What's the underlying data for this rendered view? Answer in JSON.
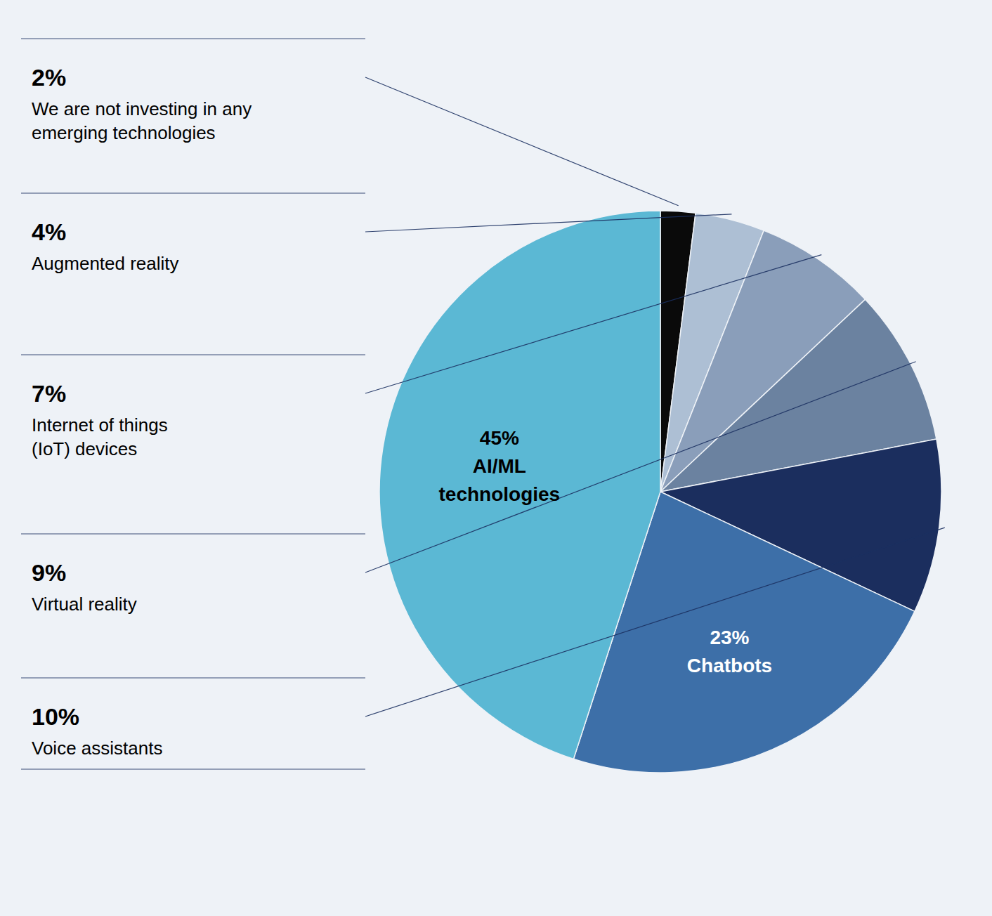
{
  "chart_data": {
    "type": "pie",
    "categories": [
      "We are not investing in any\nemerging technologies",
      "Augmented reality",
      "Internet of things\n(IoT) devices",
      "Virtual reality",
      "Voice assistants",
      "Chatbots",
      "AI/ML\ntechnologies"
    ],
    "values": [
      2,
      4,
      7,
      9,
      10,
      23,
      45
    ],
    "value_labels": [
      "2%",
      "4%",
      "7%",
      "9%",
      "10%",
      "23%",
      "45%"
    ],
    "colors": [
      "#0a0a0a",
      "#ADBFD4",
      "#8A9EBA",
      "#6B82A0",
      "#1B2E5E",
      "#3D6FA8",
      "#5BB8D4"
    ],
    "data_labels": true
  }
}
